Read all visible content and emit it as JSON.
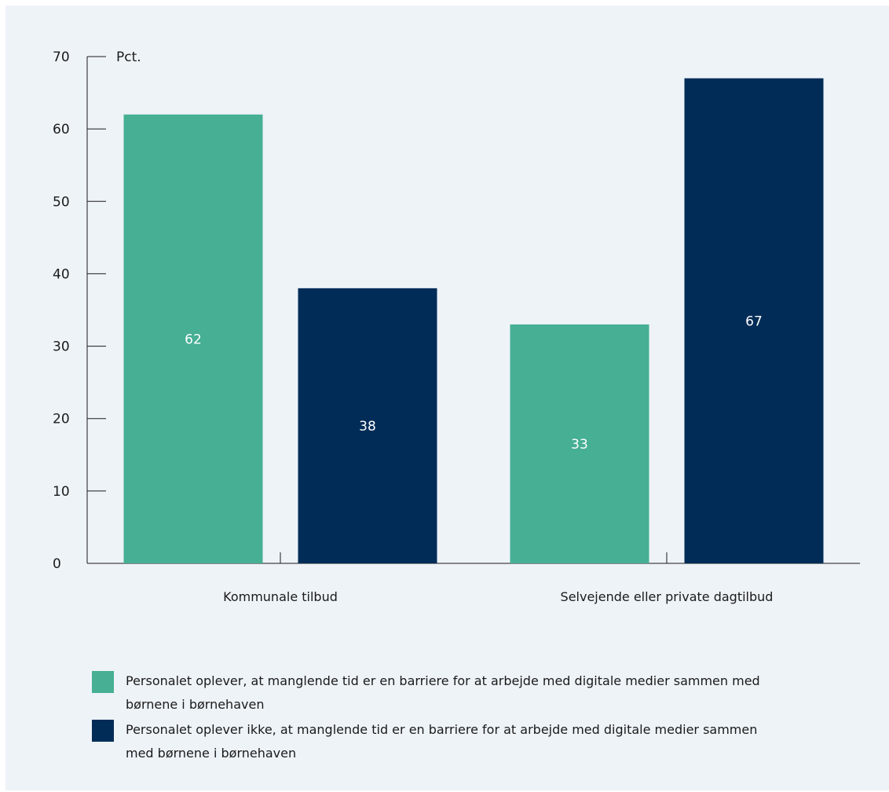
{
  "chart_data": {
    "type": "bar",
    "categories": [
      "Kommunale tilbud",
      "Selvejende eller private dagtilbud"
    ],
    "series": [
      {
        "name": "Personalet oplever, at manglende tid er en barriere for at arbejde med digitale medier sammen med børnene i børnehaven",
        "color": "#46af94",
        "values": [
          62,
          33
        ]
      },
      {
        "name": "Personalet oplever ikke, at manglende tid er en barriere for at arbejde med digitale medier sammen med børnene i børnehaven",
        "color": "#002c57",
        "values": [
          38,
          67
        ]
      }
    ],
    "ylabel": "Pct.",
    "ylim": [
      0,
      70
    ],
    "yticks": [
      0,
      10,
      20,
      30,
      40,
      50,
      60,
      70
    ],
    "grid": false,
    "legend_position": "bottom"
  }
}
